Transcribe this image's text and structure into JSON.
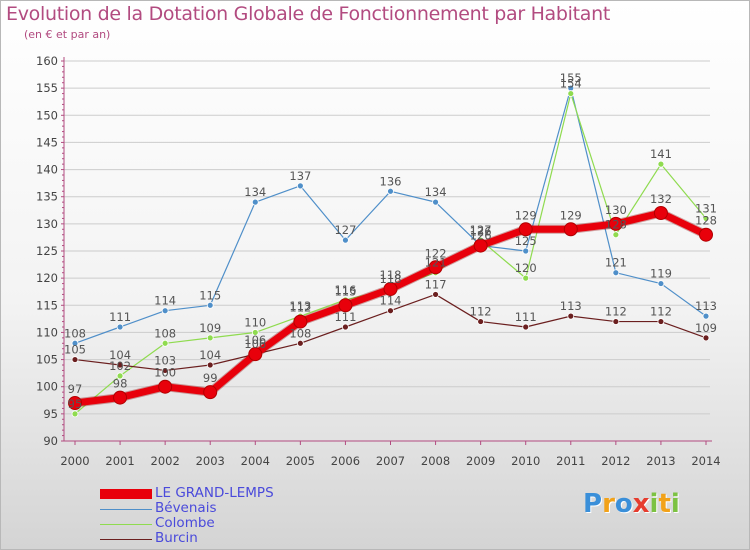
{
  "header": {
    "title": "Evolution de la Dotation Globale de Fonctionnement par Habitant",
    "subtitle": "(en € et par an)"
  },
  "colors": {
    "title": "#b24b80",
    "axis": "#b24b80",
    "grid": "#cccccc",
    "label": "#555555"
  },
  "chart_data": {
    "type": "line",
    "x": [
      "2000",
      "2001",
      "2002",
      "2003",
      "2004",
      "2005",
      "2006",
      "2007",
      "2008",
      "2009",
      "2010",
      "2011",
      "2012",
      "2013",
      "2014"
    ],
    "ylim": [
      90,
      160
    ],
    "yticks": [
      "90",
      "95",
      "100",
      "105",
      "110",
      "115",
      "120",
      "125",
      "130",
      "135",
      "140",
      "145",
      "150",
      "155",
      "160"
    ],
    "grid": "horizontal",
    "legend_position": "bottom-left",
    "series": [
      {
        "name": "LE GRAND-LEMPS",
        "color": "#e8000b",
        "label_color": "#555555",
        "width": 7,
        "values": [
          97,
          98,
          100,
          99,
          106,
          112,
          115,
          118,
          122,
          126,
          129,
          129,
          130,
          132,
          128
        ]
      },
      {
        "name": "Bévenais",
        "color": "#4f8fc9",
        "label_color": "#555555",
        "width": 1.2,
        "values": [
          108,
          111,
          114,
          115,
          134,
          137,
          127,
          136,
          134,
          126,
          125,
          155,
          121,
          119,
          113
        ]
      },
      {
        "name": "Colombe",
        "color": "#8fdb4f",
        "label_color": "#555555",
        "width": 1.2,
        "values": [
          95,
          102,
          108,
          109,
          110,
          113,
          116,
          118,
          121,
          127,
          120,
          154,
          128,
          141,
          131
        ]
      },
      {
        "name": "Burcin",
        "color": "#6b1f1f",
        "label_color": "#555555",
        "width": 1.2,
        "values": [
          105,
          104,
          103,
          104,
          106,
          108,
          111,
          114,
          117,
          112,
          111,
          113,
          112,
          112,
          109
        ]
      }
    ],
    "data_labels": [
      [
        "97",
        "98",
        "100",
        "99",
        "106",
        "112",
        "115",
        "118",
        "122",
        "126",
        "129",
        "129",
        "130",
        "132",
        "128"
      ],
      [
        "108",
        "111",
        "114",
        "115",
        "134",
        "137",
        "127",
        "136",
        "134",
        "126",
        "125",
        "155",
        "121",
        "119",
        "113"
      ],
      [
        "95",
        "102",
        "108",
        "109",
        "110",
        "113",
        "116",
        "118",
        "121",
        "127",
        "120",
        "154",
        "128",
        "141",
        "131"
      ],
      [
        "105",
        "104",
        "103",
        "104",
        "106",
        "108",
        "111",
        "114",
        "117",
        "112",
        "111",
        "113",
        "112",
        "112",
        "109"
      ]
    ]
  },
  "legend": {
    "items": [
      {
        "label": "LE GRAND-LEMPS",
        "color": "#e8000b",
        "text_color": "#4a4adb"
      },
      {
        "label": "Bévenais",
        "color": "#4f8fc9",
        "text_color": "#4a4adb"
      },
      {
        "label": "Colombe",
        "color": "#8fdb4f",
        "text_color": "#4a4adb"
      },
      {
        "label": "Burcin",
        "color": "#6b1f1f",
        "text_color": "#4a4adb"
      }
    ]
  },
  "logo": {
    "text": "Proxiti",
    "letters": [
      {
        "ch": "P",
        "color": "#3a8fd9"
      },
      {
        "ch": "r",
        "color": "#f2a219"
      },
      {
        "ch": "o",
        "color": "#3a8fd9"
      },
      {
        "ch": "x",
        "color": "#e63c2e"
      },
      {
        "ch": "i",
        "color": "#7cc242"
      },
      {
        "ch": "t",
        "color": "#f2a219"
      },
      {
        "ch": "i",
        "color": "#7cc242"
      }
    ]
  }
}
